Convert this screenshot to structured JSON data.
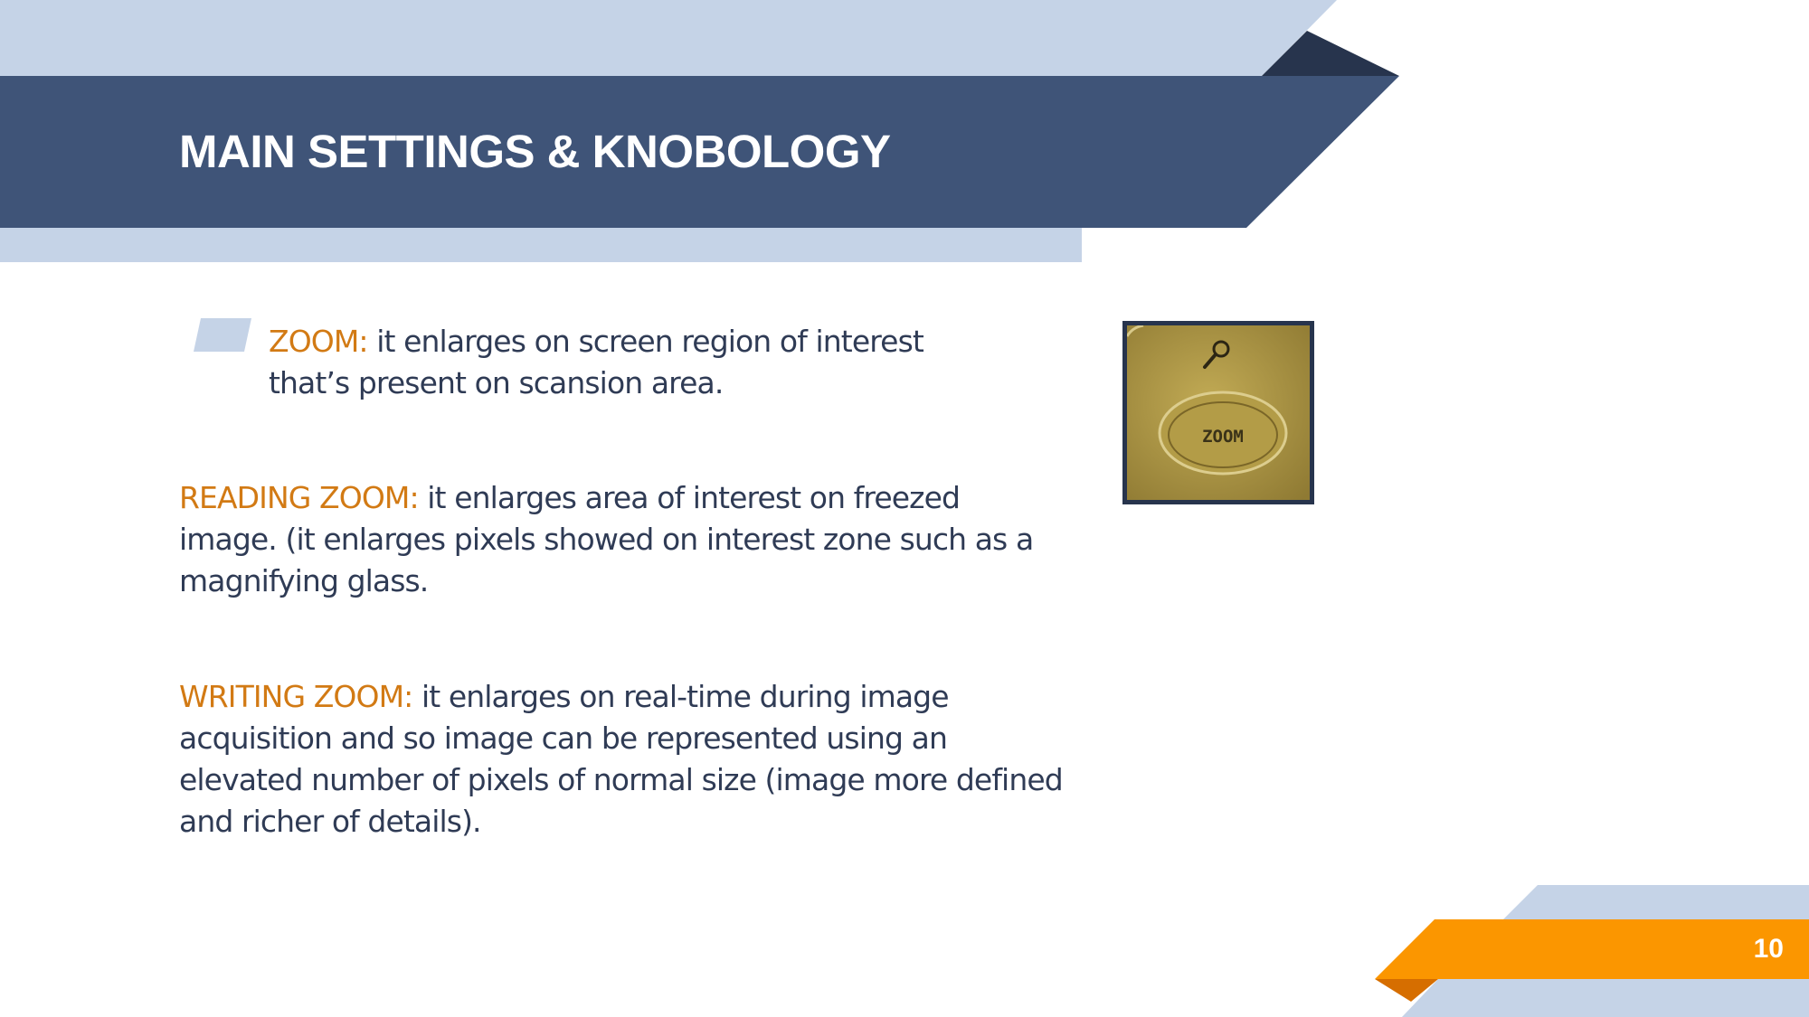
{
  "slide": {
    "title": "MAIN SETTINGS & KNOBOLOGY",
    "page_number": "10"
  },
  "items": [
    {
      "label": "ZOOM:",
      "text": " it enlarges on screen region of interest that’s present on scansion area."
    },
    {
      "label": "READING ZOOM:",
      "text": " it enlarges area of interest on freezed image. (it enlarges pixels showed on interest zone such as a magnifying glass."
    },
    {
      "label": "WRITING ZOOM:",
      "text": " it enlarges on real-time during image acquisition and so image can be represented using an elevated number of pixels of normal size (image more defined and richer of details)."
    }
  ],
  "image": {
    "button_text": "ZOOM",
    "icon": "magnifier-icon"
  },
  "colors": {
    "header_dark": "#3f5478",
    "header_light": "#c5d3e7",
    "accent_orange": "#fb9600",
    "label_orange": "#d27a14",
    "text": "#2f3b55"
  }
}
